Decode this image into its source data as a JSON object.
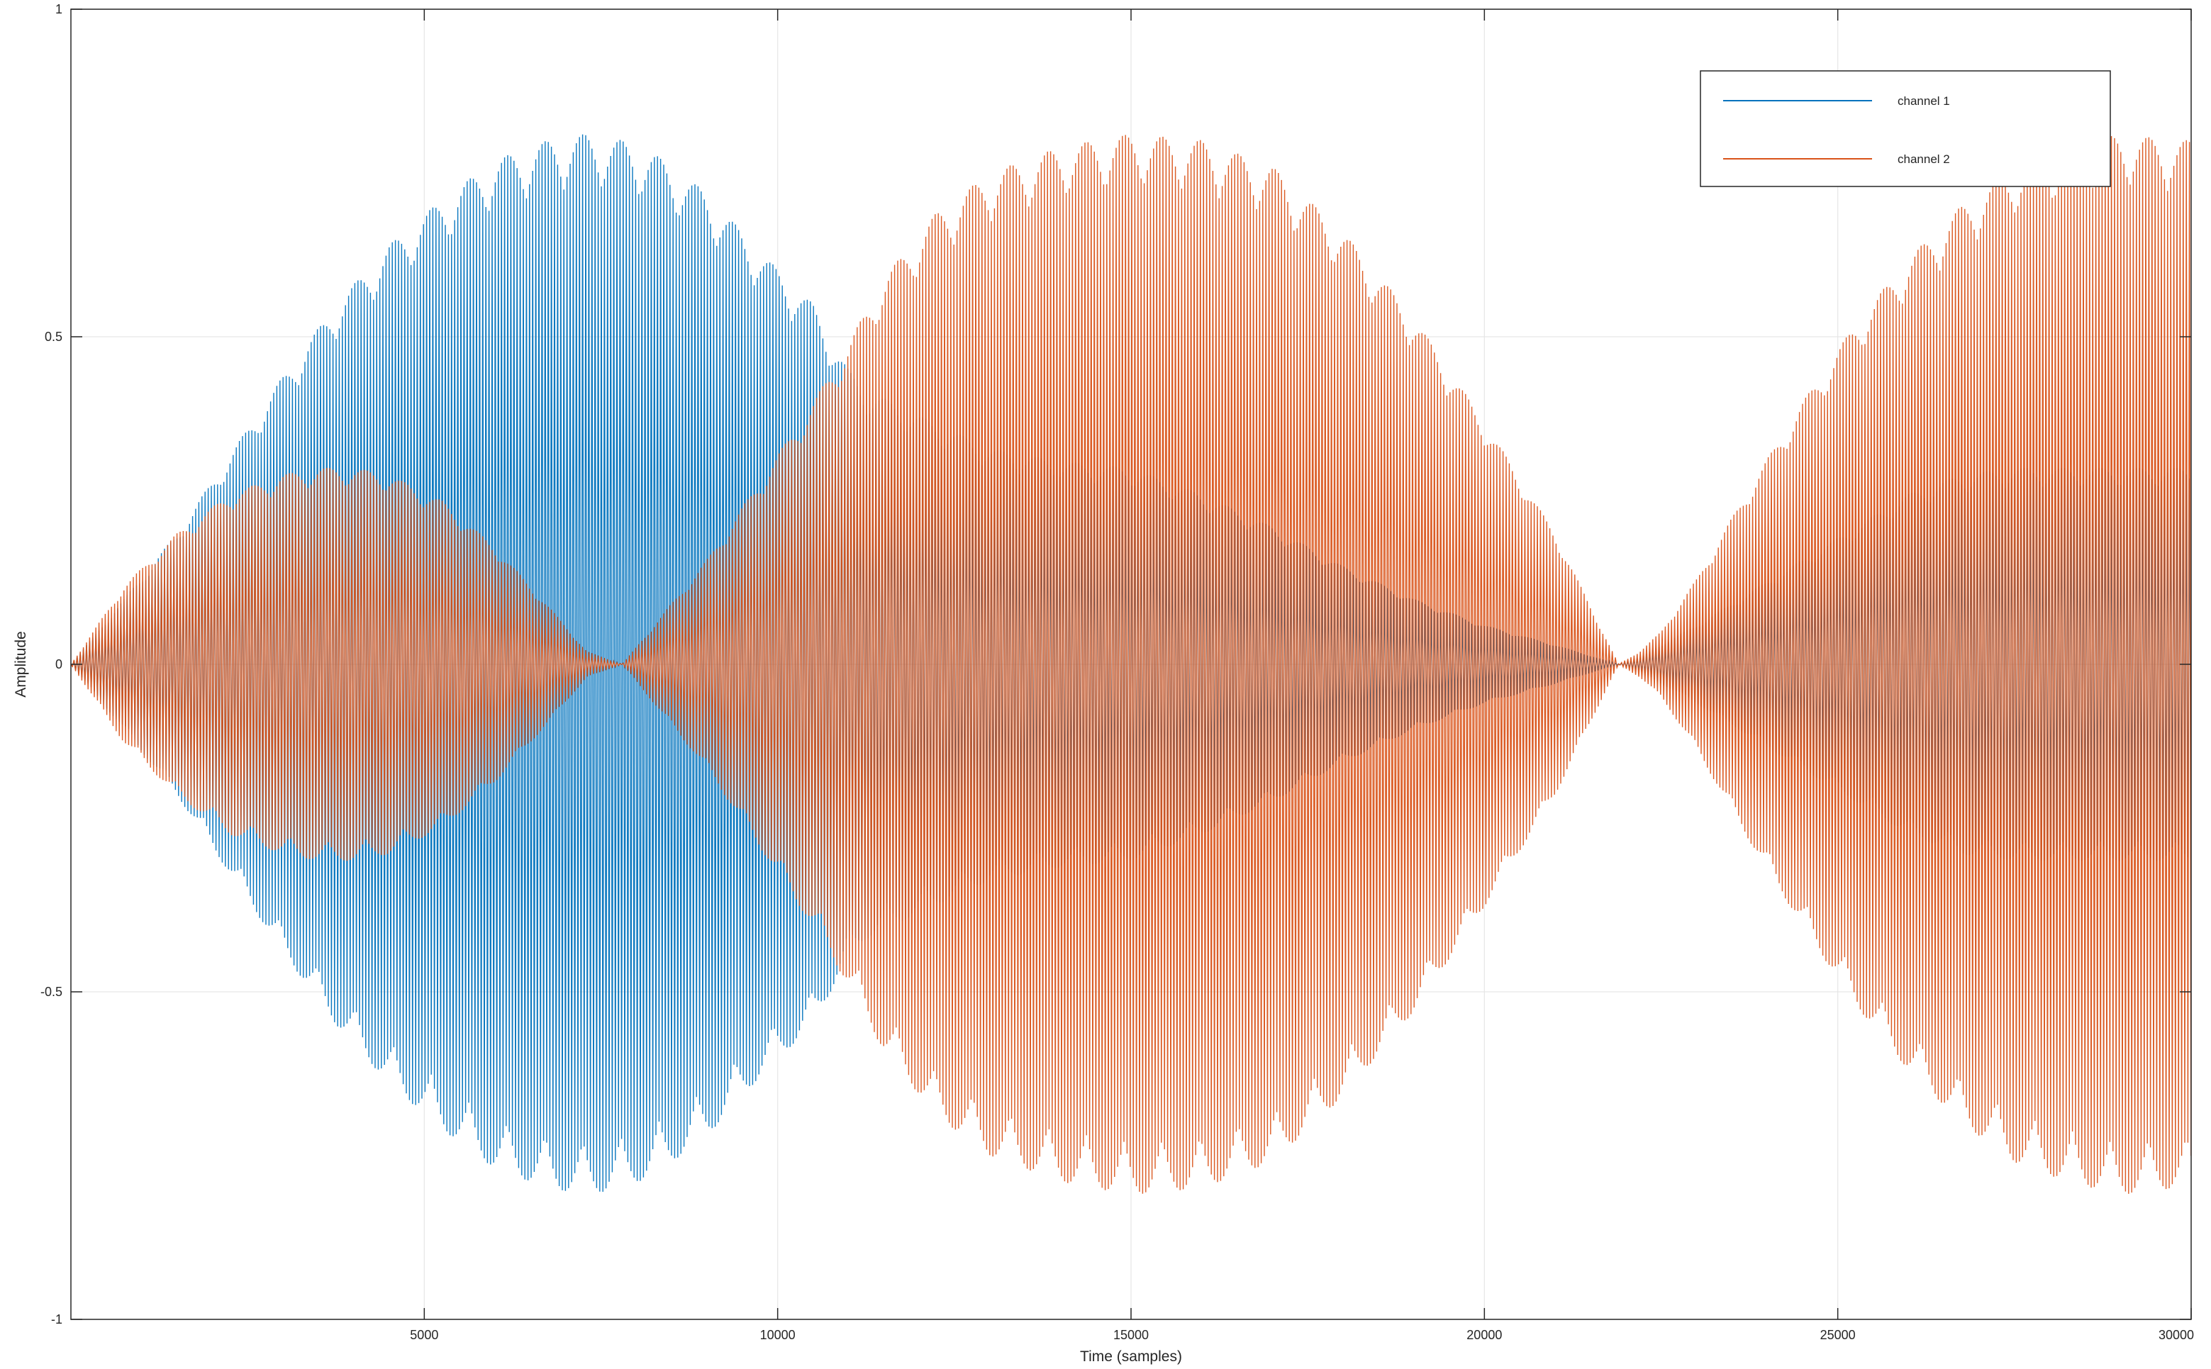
{
  "chart_data": {
    "type": "line",
    "title": "",
    "xlabel": "Time (samples)",
    "ylabel": "Amplitude",
    "xlim": [
      0,
      30000
    ],
    "ylim": [
      -1,
      1
    ],
    "grid": true,
    "legend_position": "top-right",
    "x_ticks": [
      5000,
      10000,
      15000,
      20000,
      25000,
      30000
    ],
    "x_tick_labels": [
      "5000",
      "10000",
      "15000",
      "20000",
      "25000",
      "30000"
    ],
    "y_ticks": [
      -1,
      -0.5,
      0,
      0.5,
      1
    ],
    "y_tick_labels": [
      "-1",
      "-0.5",
      "0",
      "0.5",
      "1"
    ],
    "series": [
      {
        "name": "channel 1",
        "color": "#0072BD",
        "envelope": {
          "x": [
            0,
            750,
            1500,
            2250,
            3000,
            3750,
            4500,
            5250,
            6000,
            6750,
            7300,
            7800,
            8250,
            9000,
            9750,
            10500,
            11000,
            11250,
            12000,
            13000,
            14000,
            15000,
            16000,
            17000,
            18000,
            19000,
            20000,
            21000,
            21900,
            22200,
            22500,
            23000,
            23750,
            24500,
            25250,
            26000,
            26750,
            27500,
            28250,
            29000,
            29750,
            30000
          ],
          "y": [
            0.0,
            0.1,
            0.2,
            0.32,
            0.44,
            0.55,
            0.64,
            0.71,
            0.77,
            0.8,
            0.81,
            0.8,
            0.78,
            0.72,
            0.63,
            0.55,
            0.45,
            0.42,
            0.38,
            0.33,
            0.31,
            0.3,
            0.26,
            0.21,
            0.15,
            0.1,
            0.06,
            0.03,
            0.0,
            0.01,
            0.03,
            0.06,
            0.11,
            0.16,
            0.21,
            0.26,
            0.29,
            0.3,
            0.3,
            0.3,
            0.3,
            0.3
          ]
        }
      },
      {
        "name": "channel 2",
        "color": "#D95319",
        "envelope": {
          "x": [
            0,
            750,
            1500,
            2250,
            3000,
            3500,
            4000,
            4500,
            5250,
            6000,
            6750,
            7300,
            7800,
            8250,
            9000,
            9750,
            10500,
            11000,
            11500,
            12250,
            13000,
            14000,
            15000,
            16000,
            17000,
            18000,
            19000,
            20000,
            21000,
            21900,
            22200,
            22500,
            23000,
            23750,
            24500,
            25250,
            26000,
            26750,
            27500,
            28250,
            29000,
            29750,
            30000
          ],
          "y": [
            0.0,
            0.12,
            0.2,
            0.26,
            0.29,
            0.3,
            0.3,
            0.29,
            0.25,
            0.18,
            0.09,
            0.02,
            0.0,
            0.06,
            0.16,
            0.28,
            0.4,
            0.49,
            0.59,
            0.69,
            0.75,
            0.79,
            0.81,
            0.8,
            0.76,
            0.66,
            0.53,
            0.37,
            0.2,
            0.0,
            0.02,
            0.05,
            0.13,
            0.27,
            0.4,
            0.52,
            0.62,
            0.7,
            0.76,
            0.79,
            0.81,
            0.8,
            0.8
          ]
        }
      }
    ]
  }
}
